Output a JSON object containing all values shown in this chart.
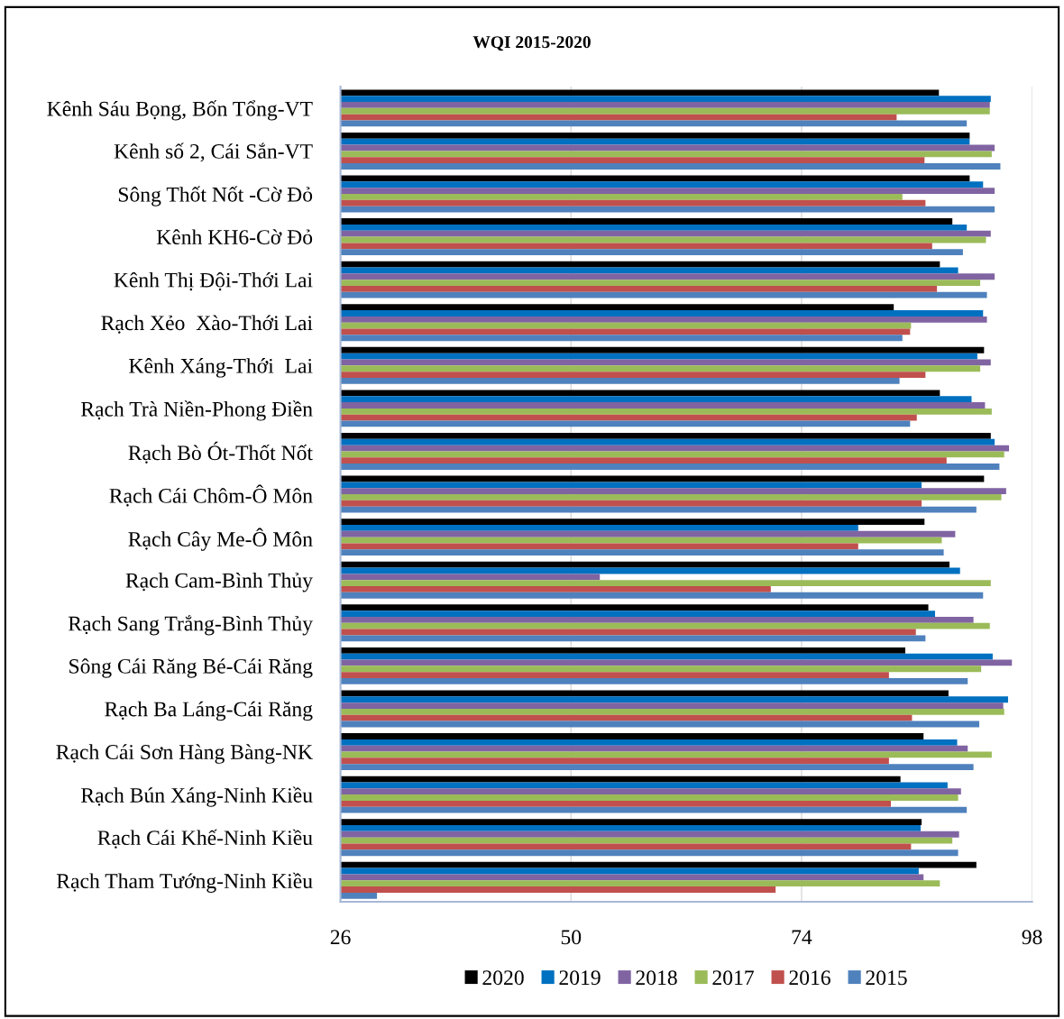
{
  "chart_data": {
    "type": "bar",
    "orientation": "horizontal",
    "title": "WQI 2015-2020",
    "categories": [
      "Kênh Sáu Bọng, Bốn Tổng-VT",
      "Kênh số 2, Cái Sắn-VT",
      "Sông Thốt Nốt -Cờ Đỏ",
      "Kênh KH6-Cờ Đỏ",
      "Kênh Thị Đội-Thới Lai",
      "Rạch Xẻo  Xào-Thới Lai",
      "Kênh Xáng-Thới  Lai",
      "Rạch Trà Niền-Phong Điền",
      "Rạch Bò Ót-Thốt Nốt",
      "Rạch Cái Chôm-Ô Môn",
      "Rạch Cây Me-Ô Môn",
      "Rạch Cam-Bình Thủy",
      "Rạch Sang Trắng-Bình Thủy",
      "Sông Cái Răng Bé-Cái Răng",
      "Rạch Ba Láng-Cái Răng",
      "Rạch Cái Sơn Hàng Bàng-NK",
      "Rạch Bún Xáng-Ninh Kiều",
      "Rạch Cái Khế-Ninh Kiều",
      "Rạch Tham Tướng-Ninh Kiều"
    ],
    "series": [
      {
        "name": "2020",
        "color": "#000000",
        "values": [
          88.3,
          91.5,
          91.5,
          89.7,
          88.4,
          83.6,
          93.0,
          88.4,
          93.7,
          93.0,
          86.8,
          89.4,
          87.2,
          84.8,
          89.3,
          86.7,
          84.3,
          86.5,
          92.2
        ]
      },
      {
        "name": "2019",
        "color": "#0070c0",
        "values": [
          93.7,
          91.5,
          92.9,
          91.2,
          90.3,
          92.9,
          92.3,
          91.7,
          94.1,
          86.5,
          79.9,
          90.5,
          87.9,
          93.9,
          95.5,
          90.2,
          89.2,
          86.4,
          86.2
        ]
      },
      {
        "name": "2018",
        "color": "#8064a2",
        "values": [
          93.6,
          94.1,
          94.1,
          93.7,
          94.1,
          93.3,
          93.7,
          93.1,
          95.6,
          95.3,
          90.0,
          53.0,
          91.9,
          95.9,
          95.0,
          91.3,
          90.6,
          90.4,
          86.7
        ]
      },
      {
        "name": "2017",
        "color": "#9bbb59",
        "values": [
          93.6,
          93.8,
          84.5,
          93.2,
          92.6,
          85.4,
          92.6,
          93.8,
          95.1,
          94.8,
          88.6,
          93.7,
          93.6,
          92.7,
          95.1,
          93.8,
          90.3,
          89.7,
          88.4
        ]
      },
      {
        "name": "2016",
        "color": "#c0504d",
        "values": [
          83.9,
          86.8,
          86.9,
          87.6,
          88.1,
          85.3,
          86.9,
          86.0,
          89.1,
          86.5,
          79.9,
          70.8,
          85.9,
          83.1,
          85.5,
          83.1,
          83.3,
          85.4,
          71.3
        ]
      },
      {
        "name": "2015",
        "color": "#4f81bd",
        "values": [
          91.2,
          94.7,
          94.1,
          90.8,
          93.3,
          84.5,
          84.2,
          85.3,
          94.6,
          92.2,
          88.8,
          92.9,
          86.9,
          91.3,
          92.5,
          91.9,
          91.2,
          90.3,
          29.8
        ]
      }
    ],
    "xlim": [
      26,
      98
    ],
    "xticks": [
      26,
      50,
      74,
      98
    ],
    "grid": "x",
    "legend": "bottom"
  }
}
